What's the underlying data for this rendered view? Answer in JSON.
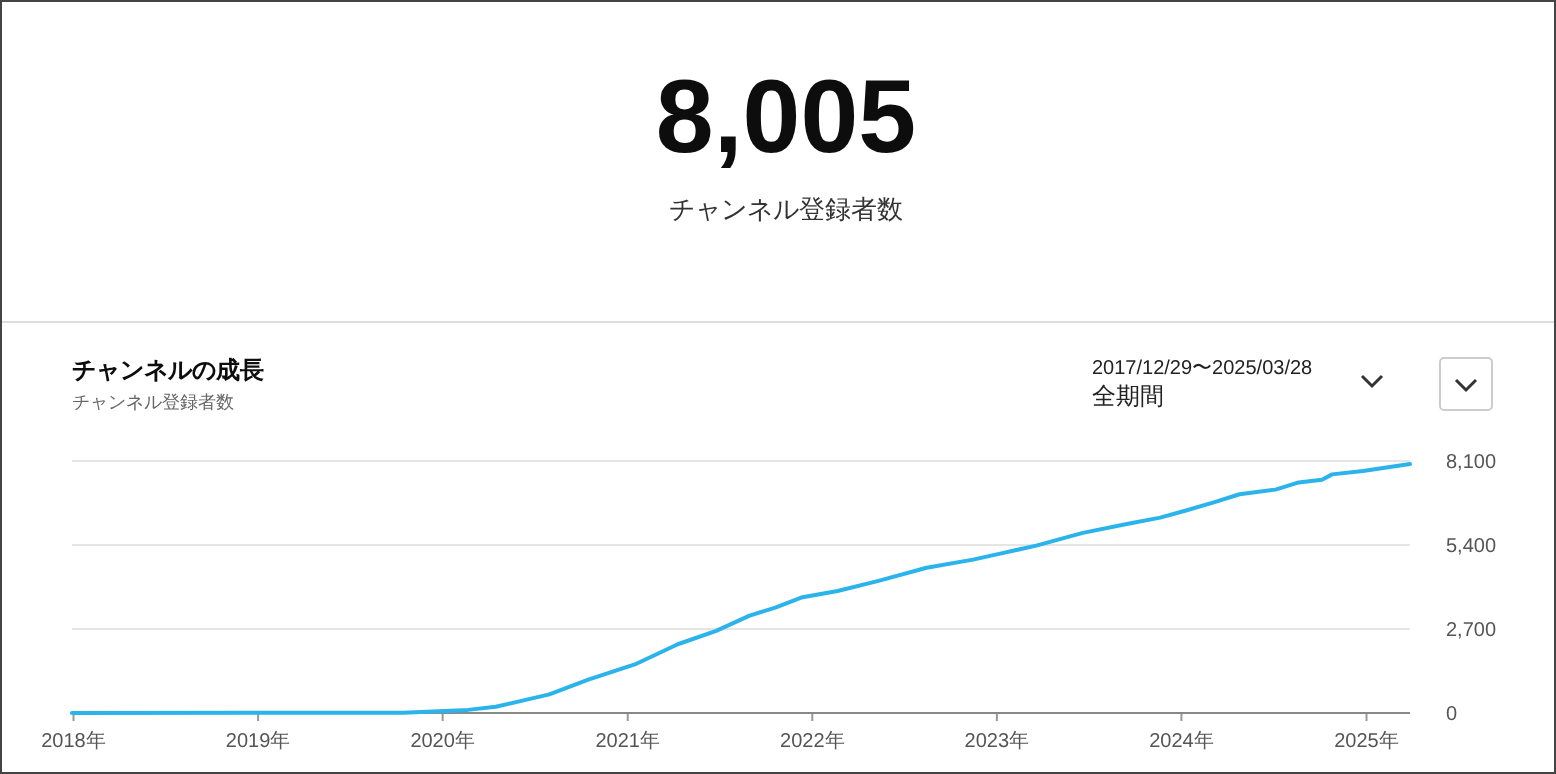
{
  "chart_data": [
    {
      "type": "other",
      "annotations": [
        "8,005",
        "チャンネル登録者数"
      ]
    },
    {
      "type": "line",
      "title": "チャンネルの成長",
      "subtitle": "チャンネル登録者数",
      "annotations": [
        "2017/12/29〜2025/03/28",
        "全期間"
      ],
      "x": [
        "2017-12-29",
        "2019-10-15",
        "2020-02-20",
        "2020-04-15",
        "2020-07-30",
        "2020-10-15",
        "2021-01-15",
        "2021-04-10",
        "2021-06-25",
        "2021-08-30",
        "2021-10-20",
        "2021-12-10",
        "2022-02-20",
        "2022-05-10",
        "2022-08-15",
        "2022-11-15",
        "2023-01-12",
        "2023-03-20",
        "2023-06-20",
        "2023-09-20",
        "2023-11-20",
        "2024-01-10",
        "2024-03-05",
        "2024-04-25",
        "2024-07-05",
        "2024-08-20",
        "2024-10-05",
        "2024-10-25",
        "2024-12-25",
        "2025-03-28"
      ],
      "series": [
        {
          "color": "#2bb3ec",
          "values": [
            0,
            10,
            100,
            200,
            600,
            1070,
            1560,
            2210,
            2640,
            3130,
            3390,
            3710,
            3920,
            4240,
            4670,
            4930,
            5140,
            5380,
            5790,
            6090,
            6280,
            6510,
            6770,
            7030,
            7180,
            7410,
            7500,
            7670,
            7780,
            8005
          ]
        }
      ],
      "xlim": [
        "2017-12-29",
        "2025-03-28"
      ],
      "xticks": [
        {
          "value": "2018-01-01",
          "label": "2018年"
        },
        {
          "value": "2019-01-01",
          "label": "2019年"
        },
        {
          "value": "2020-01-01",
          "label": "2020年"
        },
        {
          "value": "2021-01-01",
          "label": "2021年"
        },
        {
          "value": "2022-01-01",
          "label": "2022年"
        },
        {
          "value": "2023-01-01",
          "label": "2023年"
        },
        {
          "value": "2024-01-01",
          "label": "2024年"
        },
        {
          "value": "2025-01-01",
          "label": "2025年"
        }
      ],
      "ylim": [
        0,
        8100
      ],
      "yticks": [
        0,
        {
          "value": 2700,
          "label": "2,700"
        },
        {
          "value": 5400,
          "label": "5,400"
        },
        {
          "value": 8100,
          "label": "8,100"
        }
      ],
      "grid": "y",
      "marker": "none",
      "line_style": "solid"
    }
  ]
}
